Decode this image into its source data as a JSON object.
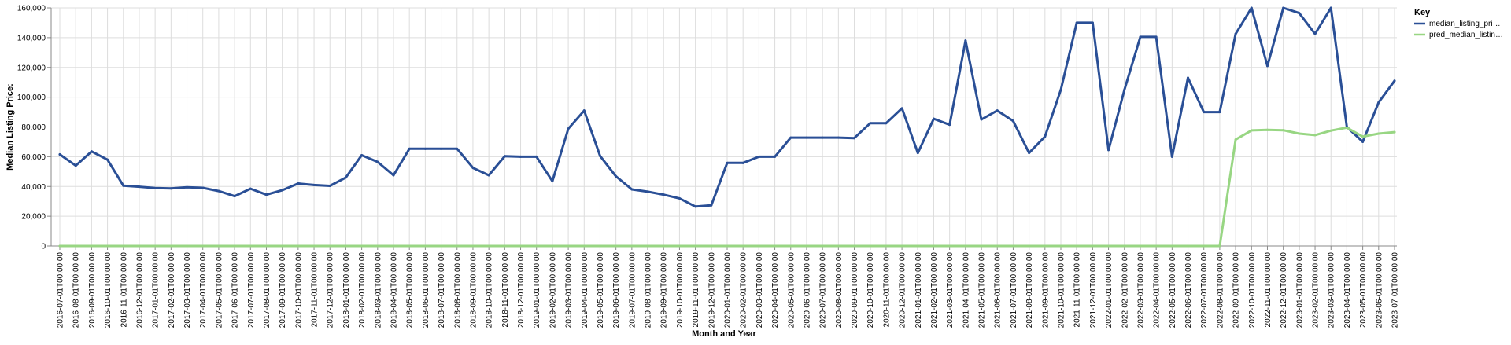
{
  "chart_data": {
    "type": "line",
    "xlabel": "Month and Year",
    "ylabel": "Median Listing Price:",
    "ylim": [
      0,
      160000
    ],
    "yticks": [
      0,
      20000,
      40000,
      60000,
      80000,
      100000,
      120000,
      140000,
      160000
    ],
    "ytick_labels": [
      "0",
      "20,000",
      "40,000",
      "60,000",
      "80,000",
      "100,000",
      "120,000",
      "140,000",
      "160,000"
    ],
    "grid": true,
    "legend": {
      "title": "Key",
      "placement": "top-right",
      "entries": [
        "median_listing_pri…",
        "pred_median_listin…"
      ]
    },
    "x": [
      "2016-07-01T00:00:00",
      "2016-08-01T00:00:00",
      "2016-09-01T00:00:00",
      "2016-10-01T00:00:00",
      "2016-11-01T00:00:00",
      "2016-12-01T00:00:00",
      "2017-01-01T00:00:00",
      "2017-02-01T00:00:00",
      "2017-03-01T00:00:00",
      "2017-04-01T00:00:00",
      "2017-05-01T00:00:00",
      "2017-06-01T00:00:00",
      "2017-07-01T00:00:00",
      "2017-08-01T00:00:00",
      "2017-09-01T00:00:00",
      "2017-10-01T00:00:00",
      "2017-11-01T00:00:00",
      "2017-12-01T00:00:00",
      "2018-01-01T00:00:00",
      "2018-02-01T00:00:00",
      "2018-03-01T00:00:00",
      "2018-04-01T00:00:00",
      "2018-05-01T00:00:00",
      "2018-06-01T00:00:00",
      "2018-07-01T00:00:00",
      "2018-08-01T00:00:00",
      "2018-09-01T00:00:00",
      "2018-10-01T00:00:00",
      "2018-11-01T00:00:00",
      "2018-12-01T00:00:00",
      "2019-01-01T00:00:00",
      "2019-02-01T00:00:00",
      "2019-03-01T00:00:00",
      "2019-04-01T00:00:00",
      "2019-05-01T00:00:00",
      "2019-06-01T00:00:00",
      "2019-07-01T00:00:00",
      "2019-08-01T00:00:00",
      "2019-09-01T00:00:00",
      "2019-10-01T00:00:00",
      "2019-11-01T00:00:00",
      "2019-12-01T00:00:00",
      "2020-01-01T00:00:00",
      "2020-02-01T00:00:00",
      "2020-03-01T00:00:00",
      "2020-04-01T00:00:00",
      "2020-05-01T00:00:00",
      "2020-06-01T00:00:00",
      "2020-07-01T00:00:00",
      "2020-08-01T00:00:00",
      "2020-09-01T00:00:00",
      "2020-10-01T00:00:00",
      "2020-11-01T00:00:00",
      "2020-12-01T00:00:00",
      "2021-01-01T00:00:00",
      "2021-02-01T00:00:00",
      "2021-03-01T00:00:00",
      "2021-04-01T00:00:00",
      "2021-05-01T00:00:00",
      "2021-06-01T00:00:00",
      "2021-07-01T00:00:00",
      "2021-08-01T00:00:00",
      "2021-09-01T00:00:00",
      "2021-10-01T00:00:00",
      "2021-11-01T00:00:00",
      "2021-12-01T00:00:00",
      "2022-01-01T00:00:00",
      "2022-02-01T00:00:00",
      "2022-03-01T00:00:00",
      "2022-04-01T00:00:00",
      "2022-05-01T00:00:00",
      "2022-06-01T00:00:00",
      "2022-07-01T00:00:00",
      "2022-08-01T00:00:00",
      "2022-09-01T00:00:00",
      "2022-10-01T00:00:00",
      "2022-11-01T00:00:00",
      "2022-12-01T00:00:00",
      "2023-01-01T00:00:00",
      "2023-02-01T00:00:00",
      "2023-03-01T00:00:00",
      "2023-04-01T00:00:00",
      "2023-05-01T00:00:00",
      "2023-06-01T00:00:00",
      "2023-07-01T00:00:00"
    ],
    "series": [
      {
        "name": "median_listing_pri…",
        "color": "#2a4f96",
        "values": [
          61500,
          54000,
          63500,
          58000,
          40500,
          39800,
          38900,
          38700,
          39500,
          39100,
          36900,
          33500,
          38500,
          34500,
          37500,
          42000,
          41000,
          40400,
          46000,
          61000,
          56500,
          47500,
          65300,
          65300,
          65300,
          65300,
          52500,
          47500,
          60300,
          60000,
          60000,
          43500,
          78800,
          91000,
          60500,
          46800,
          38000,
          36500,
          34500,
          32000,
          26500,
          27300,
          55800,
          55800,
          60000,
          60000,
          72800,
          72800,
          72800,
          72800,
          72500,
          82500,
          82500,
          92500,
          62500,
          85500,
          81500,
          138000,
          85000,
          91000,
          84000,
          62500,
          73500,
          105000,
          150000,
          150000,
          64500,
          105000,
          140500,
          140500,
          60000,
          113000,
          90000,
          90000,
          142500,
          160000,
          121000,
          160000,
          156500,
          142500,
          160000,
          80000,
          70000,
          96500,
          111000
        ]
      },
      {
        "name": "pred_median_listin…",
        "color": "#98d683",
        "values": [
          0,
          0,
          0,
          0,
          0,
          0,
          0,
          0,
          0,
          0,
          0,
          0,
          0,
          0,
          0,
          0,
          0,
          0,
          0,
          0,
          0,
          0,
          0,
          0,
          0,
          0,
          0,
          0,
          0,
          0,
          0,
          0,
          0,
          0,
          0,
          0,
          0,
          0,
          0,
          0,
          0,
          0,
          0,
          0,
          0,
          0,
          0,
          0,
          0,
          0,
          0,
          0,
          0,
          0,
          0,
          0,
          0,
          0,
          0,
          0,
          0,
          0,
          0,
          0,
          0,
          0,
          0,
          0,
          0,
          0,
          0,
          0,
          0,
          0,
          71500,
          77700,
          78000,
          77800,
          75500,
          74500,
          77500,
          79500,
          73500,
          75500,
          76500
        ]
      }
    ]
  }
}
